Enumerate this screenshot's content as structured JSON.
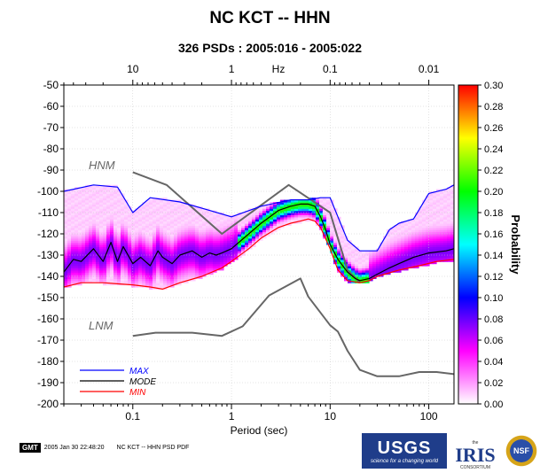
{
  "header": {
    "title": "NC KCT -- HHN",
    "subtitle": "326 PSDs : 2005:016 - 2005:022"
  },
  "footer": {
    "gmt_badge": "GMT",
    "timestamp": "2005 Jan 30 22:48:20",
    "caption": "NC KCT -- HHN PSD PDF"
  },
  "logos": {
    "usgs": "USGS",
    "usgs_tagline": "science for a changing world",
    "iris": "IRIS",
    "iris_sub": "CONSORTIUM",
    "iris_small": "the",
    "nsf": "NSF"
  },
  "chart_data": {
    "type": "heatmap",
    "title": "",
    "xlabel": "Period (sec)",
    "top_axis_label": "Hz",
    "ylabel": "",
    "colorbar_label": "Probability",
    "x_scale": "log",
    "xlim": [
      0.02,
      180
    ],
    "ylim": [
      -200,
      -50
    ],
    "bottom_ticks": [
      "0.1",
      "1",
      "10",
      "100"
    ],
    "top_ticks": [
      "10",
      "1",
      "0.1",
      "0.01"
    ],
    "y_ticks": [
      "-50",
      "-60",
      "-70",
      "-80",
      "-90",
      "-100",
      "-110",
      "-120",
      "-130",
      "-140",
      "-150",
      "-160",
      "-170",
      "-180",
      "-190",
      "-200"
    ],
    "colorbar": {
      "range": [
        0,
        0.3
      ],
      "ticks": [
        "0.00",
        "0.02",
        "0.04",
        "0.06",
        "0.08",
        "0.10",
        "0.12",
        "0.14",
        "0.16",
        "0.18",
        "0.20",
        "0.22",
        "0.24",
        "0.26",
        "0.28",
        "0.30"
      ],
      "colors": [
        "#ffffff",
        "#ff00ff",
        "#0000ff",
        "#00ffff",
        "#00ff00",
        "#ffff00",
        "#ff0000"
      ]
    },
    "legend": {
      "placement": "bottom-left",
      "entries": [
        {
          "label": "MAX",
          "color": "#0000ff"
        },
        {
          "label": "MODE",
          "color": "#000000"
        },
        {
          "label": "MIN",
          "color": "#ff0000"
        }
      ]
    },
    "model_labels": {
      "hnm": "HNM",
      "lnm": "LNM"
    },
    "series": [
      {
        "name": "HNM",
        "color": "#666666",
        "x": [
          0.1,
          0.22,
          0.8,
          3.8,
          10,
          15,
          20
        ],
        "y": [
          -91,
          -97,
          -120,
          -97,
          -110,
          -137,
          -143
        ]
      },
      {
        "name": "LNM",
        "color": "#666666",
        "x": [
          0.1,
          0.17,
          0.4,
          0.8,
          1.3,
          2.4,
          5,
          6,
          10,
          12,
          15,
          20,
          30,
          50,
          80,
          120,
          180
        ],
        "y": [
          -168,
          -166.5,
          -166.5,
          -168,
          -163.5,
          -149,
          -141,
          -149.5,
          -163,
          -166,
          -175,
          -184,
          -187,
          -187,
          -185,
          -185,
          -186
        ]
      },
      {
        "name": "MAX",
        "color": "#0000ff",
        "x": [
          0.02,
          0.04,
          0.07,
          0.1,
          0.15,
          0.3,
          0.6,
          1,
          2,
          4,
          6,
          8,
          10,
          12,
          15,
          20,
          30,
          40,
          50,
          70,
          100,
          150,
          180
        ],
        "y": [
          -100,
          -97,
          -98,
          -110,
          -103,
          -105,
          -109,
          -112,
          -107,
          -104,
          -104,
          -103,
          -103,
          -112,
          -123,
          -128,
          -128,
          -118,
          -115,
          -113,
          -101,
          -99,
          -97
        ]
      },
      {
        "name": "MODE",
        "color": "#000000",
        "x": [
          0.02,
          0.025,
          0.03,
          0.04,
          0.05,
          0.06,
          0.07,
          0.08,
          0.1,
          0.12,
          0.15,
          0.18,
          0.2,
          0.25,
          0.3,
          0.4,
          0.5,
          0.6,
          0.7,
          0.8,
          1,
          1.5,
          2,
          3,
          4,
          5,
          6,
          7,
          8,
          9,
          10,
          12,
          15,
          18,
          20,
          25,
          30,
          40,
          50,
          70,
          100,
          150,
          180
        ],
        "y": [
          -138,
          -132,
          -133,
          -127,
          -133,
          -124,
          -133,
          -126,
          -134,
          -131,
          -135,
          -128,
          -131,
          -134,
          -130,
          -128,
          -131,
          -129,
          -130,
          -129,
          -127,
          -120,
          -115,
          -109,
          -107,
          -106,
          -106,
          -107,
          -112,
          -118,
          -125,
          -132,
          -138,
          -141,
          -142,
          -141,
          -139,
          -136,
          -134,
          -131,
          -129,
          -128,
          -127
        ]
      },
      {
        "name": "MIN",
        "color": "#ff0000",
        "x": [
          0.02,
          0.03,
          0.05,
          0.1,
          0.15,
          0.2,
          0.3,
          0.5,
          0.8,
          1,
          1.5,
          2,
          3,
          4,
          5,
          6,
          7,
          8,
          10,
          12,
          15,
          20,
          25,
          30,
          50,
          80,
          120,
          180
        ],
        "y": [
          -145,
          -143,
          -143,
          -144,
          -145,
          -146,
          -143,
          -140,
          -136,
          -133,
          -127,
          -122,
          -117,
          -115,
          -114,
          -113,
          -114,
          -117,
          -127,
          -137,
          -142,
          -143,
          -142,
          -140,
          -137,
          -135,
          -133,
          -132
        ]
      }
    ]
  }
}
